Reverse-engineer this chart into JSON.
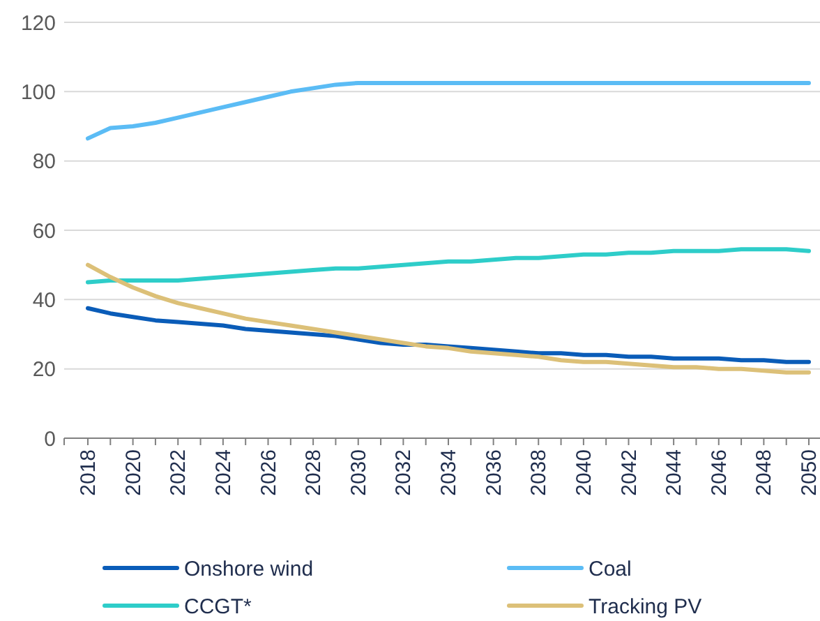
{
  "chart_data": {
    "type": "line",
    "categories": [
      "2018",
      null,
      "2020",
      null,
      "2022",
      null,
      "2024",
      null,
      "2026",
      null,
      "2028",
      null,
      "2030",
      null,
      "2032",
      null,
      "2034",
      null,
      "2036",
      null,
      "2038",
      null,
      "2040",
      null,
      "2042",
      null,
      "2044",
      null,
      "2046",
      null,
      "2048",
      null,
      "2050"
    ],
    "series": [
      {
        "name": "Onshore wind",
        "color": "#0a5cb8",
        "values": [
          37.5,
          36,
          35,
          34,
          33.5,
          33,
          32.5,
          31.5,
          31,
          30.5,
          30,
          29.5,
          28.5,
          27.5,
          27,
          27,
          26.5,
          26,
          25.5,
          25,
          24.5,
          24.5,
          24,
          24,
          23.5,
          23.5,
          23,
          23,
          23,
          22.5,
          22.5,
          22,
          22
        ]
      },
      {
        "name": "Coal",
        "color": "#5bbcf5",
        "values": [
          86.5,
          89.5,
          90,
          91,
          92.5,
          94,
          95.5,
          97,
          98.5,
          100,
          101,
          102,
          102.5,
          102.5,
          102.5,
          102.5,
          102.5,
          102.5,
          102.5,
          102.5,
          102.5,
          102.5,
          102.5,
          102.5,
          102.5,
          102.5,
          102.5,
          102.5,
          102.5,
          102.5,
          102.5,
          102.5,
          102.5
        ]
      },
      {
        "name": "CCGT*",
        "color": "#2ecdc9",
        "values": [
          45,
          45.5,
          45.5,
          45.5,
          45.5,
          46,
          46.5,
          47,
          47.5,
          48,
          48.5,
          49,
          49,
          49.5,
          50,
          50.5,
          51,
          51,
          51.5,
          52,
          52,
          52.5,
          53,
          53,
          53.5,
          53.5,
          54,
          54,
          54,
          54.5,
          54.5,
          54.5,
          54
        ]
      },
      {
        "name": "Tracking PV",
        "color": "#dcc078",
        "values": [
          50,
          46.5,
          43.5,
          41,
          39,
          37.5,
          36,
          34.5,
          33.5,
          32.5,
          31.5,
          30.5,
          29.5,
          28.5,
          27.5,
          26.5,
          26,
          25,
          24.5,
          24,
          23.5,
          22.5,
          22,
          22,
          21.5,
          21,
          20.5,
          20.5,
          20,
          20,
          19.5,
          19,
          19
        ]
      }
    ],
    "ylim": [
      0,
      120
    ],
    "yticks": [
      0,
      20,
      40,
      60,
      80,
      100,
      120
    ],
    "grid": "y",
    "legend": "bottom",
    "marker": "none",
    "line_style": "solid"
  }
}
